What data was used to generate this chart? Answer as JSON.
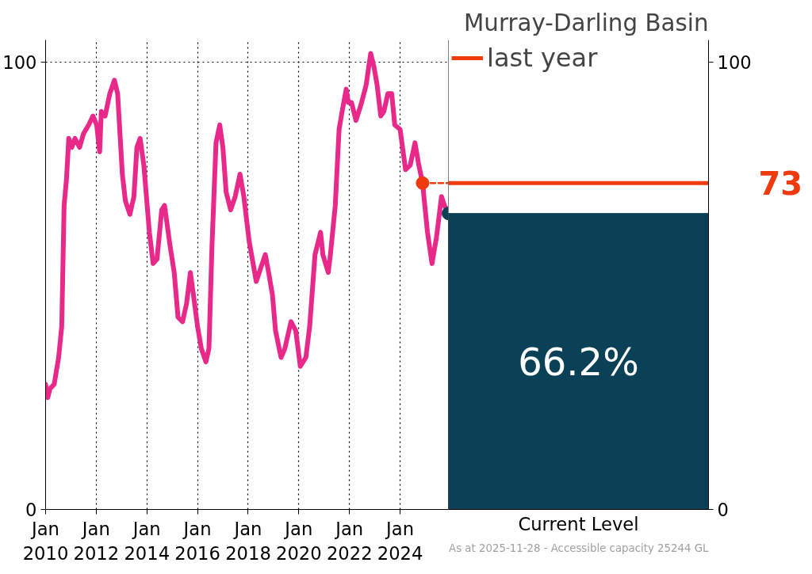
{
  "chart_data": [
    {
      "type": "line",
      "ylim": [
        0,
        105
      ],
      "yticks": [
        0,
        100
      ],
      "xlim": [
        "2010-01-01",
        "2025-11-28"
      ],
      "xticks": [
        {
          "value": "2010-01-01",
          "label": "Jan\n2010"
        },
        {
          "value": "2012-01-01",
          "label": "Jan\n2012"
        },
        {
          "value": "2014-01-01",
          "label": "Jan\n2014"
        },
        {
          "value": "2016-01-01",
          "label": "Jan\n2016"
        },
        {
          "value": "2018-01-01",
          "label": "Jan\n2018"
        },
        {
          "value": "2020-01-01",
          "label": "Jan\n2020"
        },
        {
          "value": "2022-01-01",
          "label": "Jan\n2022"
        },
        {
          "value": "2024-01-01",
          "label": "Jan\n2024"
        }
      ],
      "grid": true,
      "legend": false,
      "series": [
        {
          "type": "line",
          "color": "#e8298a",
          "marker": "none",
          "line_style": "solid",
          "x": [
            "2010-01-01",
            "2010-02-01",
            "2010-03-05",
            "2010-05-05",
            "2010-07-08",
            "2010-08-22",
            "2010-09-25",
            "2010-10-30",
            "2010-12-01",
            "2011-01-15",
            "2011-03-01",
            "2011-05-06",
            "2011-07-01",
            "2011-09-15",
            "2011-11-15",
            "2012-01-08",
            "2012-02-20",
            "2012-03-15",
            "2012-05-08",
            "2012-07-15",
            "2012-09-20",
            "2012-11-05",
            "2013-01-12",
            "2013-02-25",
            "2013-05-01",
            "2013-06-28",
            "2013-08-10",
            "2013-09-25",
            "2013-11-18",
            "2014-02-06",
            "2014-04-01",
            "2014-05-27",
            "2014-08-03",
            "2014-09-12",
            "2014-12-01",
            "2015-01-30",
            "2015-03-26",
            "2015-05-30",
            "2015-07-27",
            "2015-09-20",
            "2015-11-03",
            "2016-01-01",
            "2016-02-25",
            "2016-05-01",
            "2016-06-14",
            "2016-07-28",
            "2016-09-24",
            "2016-11-17",
            "2017-01-01",
            "2017-02-17",
            "2017-04-23",
            "2017-06-28",
            "2017-09-05",
            "2017-10-30",
            "2018-01-15",
            "2018-04-27",
            "2018-07-01",
            "2018-09-05",
            "2018-10-23",
            "2018-12-17",
            "2019-01-30",
            "2019-04-20",
            "2019-06-14",
            "2019-09-10",
            "2019-11-18",
            "2020-01-23",
            "2020-04-12",
            "2020-06-06",
            "2020-08-22",
            "2020-11-10",
            "2020-12-13",
            "2021-03-01",
            "2021-04-01",
            "2021-06-10",
            "2021-08-04",
            "2021-09-17",
            "2021-11-15",
            "2021-12-17",
            "2022-01-30",
            "2022-04-05",
            "2022-06-25",
            "2022-08-30",
            "2022-11-03",
            "2022-12-20",
            "2023-02-03",
            "2023-03-28",
            "2023-05-12",
            "2023-07-08",
            "2023-09-02",
            "2023-10-16",
            "2024-01-01",
            "2024-03-20",
            "2024-05-26",
            "2024-08-03",
            "2024-09-27",
            "2024-11-20",
            "2025-01-30",
            "2025-04-05",
            "2025-06-10",
            "2025-08-20",
            "2025-10-01",
            "2025-11-28"
          ],
          "values": [
            28,
            25,
            27,
            28,
            34,
            41,
            68,
            74,
            83,
            81,
            83,
            81,
            84,
            86,
            88,
            86,
            80,
            89,
            88,
            93,
            96,
            93,
            75,
            69,
            66,
            70,
            81,
            83,
            77,
            62,
            55,
            56,
            67,
            68,
            59,
            53,
            43,
            42,
            46,
            53,
            48,
            41,
            36,
            33,
            36,
            59,
            82,
            86,
            81,
            71,
            67,
            70,
            75,
            70,
            60,
            51,
            54,
            57,
            53,
            48,
            40,
            34,
            36,
            42,
            40,
            32,
            34,
            41,
            57,
            62,
            57,
            53,
            57,
            68,
            85,
            89,
            94,
            91,
            91,
            87,
            91,
            95,
            102,
            99,
            95,
            88,
            89,
            93,
            93,
            86,
            85,
            76,
            77,
            82,
            77,
            73,
            62,
            55,
            61,
            70,
            68,
            66.2
          ]
        },
        {
          "type": "line",
          "color": "#ee3a0c",
          "marker": "none",
          "line_style": "dashed",
          "x": [
            "2024-11-20",
            "2025-11-28"
          ],
          "values": [
            73,
            73
          ]
        },
        {
          "type": "scatter",
          "color": "#ee3a0c",
          "marker": "circle",
          "x": [
            "2024-11-20"
          ],
          "values": [
            73
          ]
        },
        {
          "type": "scatter",
          "color": "#0b4157",
          "marker": "circle",
          "x": [
            "2025-11-28"
          ],
          "values": [
            66.2
          ]
        }
      ]
    },
    {
      "type": "bar",
      "title": "Murray-Darling Basin",
      "categories": [
        "Current Level"
      ],
      "ylim": [
        0,
        105
      ],
      "yticks": [
        0,
        100
      ],
      "grid": false,
      "legend": "top left",
      "annotations": [
        "73",
        "As at 2025-11-28 - Accessible capacity 25244 GL"
      ],
      "ref_lines": [
        {
          "axis": "y",
          "value": 73,
          "label": "last year",
          "color": "#ee3a0c"
        }
      ],
      "series": [
        {
          "type": "bar",
          "color": "#0b4157",
          "values": [
            66.2
          ],
          "value_labels": [
            "66.2%"
          ]
        }
      ]
    }
  ]
}
